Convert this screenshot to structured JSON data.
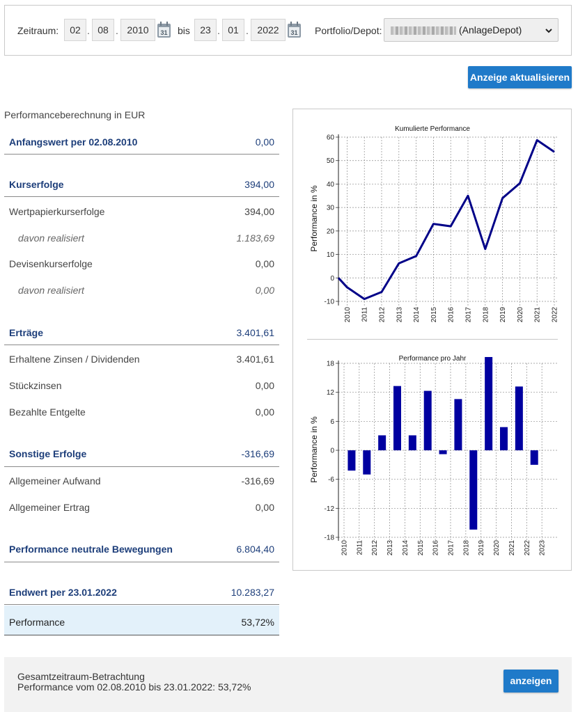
{
  "filter": {
    "period_label": "Zeitraum:",
    "from_day": "02",
    "from_month": "08",
    "from_year": "2010",
    "to_label": "bis",
    "to_day": "23",
    "to_month": "01",
    "to_year": "2022",
    "date_separator": ".",
    "calendar_day": "31",
    "portfolio_label": "Portfolio/Depot:",
    "portfolio_value": "(AnlageDepot)"
  },
  "update_button": "Anzeige aktualisieren",
  "calc": {
    "title": "Performanceberechnung in EUR",
    "rows": [
      {
        "label": "Anfangswert per 02.08.2010",
        "value": "0,00"
      },
      {
        "label": "Kurserfolge",
        "value": "394,00"
      },
      {
        "label": "Wertpapierkurserfolge",
        "value": "394,00"
      },
      {
        "label": "davon realisiert",
        "value": "1.183,69"
      },
      {
        "label": "Devisenkurserfolge",
        "value": "0,00"
      },
      {
        "label": "davon realisiert",
        "value": "0,00"
      },
      {
        "label": "Erträge",
        "value": "3.401,61"
      },
      {
        "label": "Erhaltene Zinsen / Dividenden",
        "value": "3.401,61"
      },
      {
        "label": "Stückzinsen",
        "value": "0,00"
      },
      {
        "label": "Bezahlte Entgelte",
        "value": "0,00"
      },
      {
        "label": "Sonstige Erfolge",
        "value": "-316,69"
      },
      {
        "label": "Allgemeiner Aufwand",
        "value": "-316,69"
      },
      {
        "label": "Allgemeiner Ertrag",
        "value": "0,00"
      },
      {
        "label": "Performance neutrale Bewegungen",
        "value": "6.804,40"
      },
      {
        "label": "Endwert per 23.01.2022",
        "value": "10.283,27"
      },
      {
        "label": "Performance",
        "value": "53,72%"
      }
    ]
  },
  "chart_data": [
    {
      "type": "line",
      "title": "Kumulierte Performance",
      "ylabel": "Performance in %",
      "xlabel": "",
      "ylim": [
        -10,
        60
      ],
      "yticks": [
        "-10",
        "0",
        "10",
        "20",
        "30",
        "40",
        "50",
        "60"
      ],
      "xticks": [
        "2010",
        "2011",
        "2012",
        "2013",
        "2014",
        "2015",
        "2016",
        "2017",
        "2018",
        "2019",
        "2020",
        "2021",
        "2022"
      ],
      "grid": true,
      "color": "#000088",
      "x": [
        2009.5,
        2010,
        2011,
        2012,
        2013,
        2014,
        2015,
        2016,
        2017,
        2018,
        2019,
        2020,
        2021,
        2022
      ],
      "values": [
        0,
        -4,
        -9,
        -6,
        6.2,
        9.3,
        23,
        22,
        35,
        12.3,
        34,
        40.3,
        58.7,
        53.7
      ]
    },
    {
      "type": "bar",
      "title": "Performance pro Jahr",
      "ylabel": "Performance in %",
      "xlabel": "",
      "ylim": [
        -18,
        18
      ],
      "yticks": [
        "-18",
        "-12",
        "-6",
        "0",
        "6",
        "12",
        "18"
      ],
      "categories": [
        "2010",
        "2011",
        "2012",
        "2013",
        "2014",
        "2015",
        "2016",
        "2017",
        "2018",
        "2019",
        "2020",
        "2021",
        "2022",
        "2023"
      ],
      "values": [
        -4.2,
        -5,
        3.1,
        13.3,
        3.1,
        12.3,
        -0.8,
        10.6,
        -16.4,
        19.3,
        4.8,
        13.2,
        -3,
        null
      ],
      "grid": true,
      "color": "#0000a0"
    }
  ],
  "bottom": {
    "line1": "Gesamtzeitraum-Betrachtung",
    "line2": "Performance vom 02.08.2010 bis 23.01.2022: 53,72%",
    "button": "anzeigen"
  }
}
